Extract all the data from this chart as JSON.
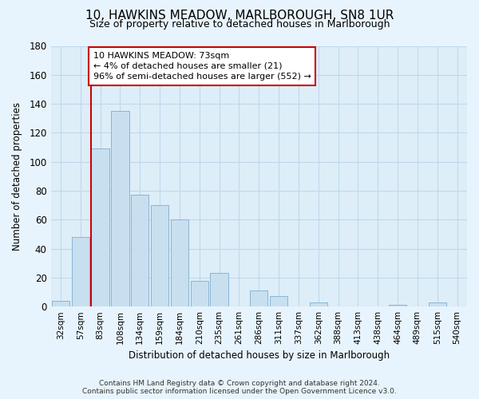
{
  "title": "10, HAWKINS MEADOW, MARLBOROUGH, SN8 1UR",
  "subtitle": "Size of property relative to detached houses in Marlborough",
  "xlabel": "Distribution of detached houses by size in Marlborough",
  "ylabel": "Number of detached properties",
  "footer_line1": "Contains HM Land Registry data © Crown copyright and database right 2024.",
  "footer_line2": "Contains public sector information licensed under the Open Government Licence v3.0.",
  "bar_labels": [
    "32sqm",
    "57sqm",
    "83sqm",
    "108sqm",
    "134sqm",
    "159sqm",
    "184sqm",
    "210sqm",
    "235sqm",
    "261sqm",
    "286sqm",
    "311sqm",
    "337sqm",
    "362sqm",
    "388sqm",
    "413sqm",
    "438sqm",
    "464sqm",
    "489sqm",
    "515sqm",
    "540sqm"
  ],
  "bar_values": [
    4,
    48,
    109,
    135,
    77,
    70,
    60,
    18,
    23,
    0,
    11,
    7,
    0,
    3,
    0,
    0,
    0,
    1,
    0,
    3,
    0
  ],
  "bar_color": "#c8dff0",
  "bar_edge_color": "#8ab4d4",
  "property_line_index": 2,
  "property_line_color": "#cc0000",
  "annotation_text_line1": "10 HAWKINS MEADOW: 73sqm",
  "annotation_text_line2": "← 4% of detached houses are smaller (21)",
  "annotation_text_line3": "96% of semi-detached houses are larger (552) →",
  "annotation_box_color": "#cc0000",
  "ylim": [
    0,
    180
  ],
  "yticks": [
    0,
    20,
    40,
    60,
    80,
    100,
    120,
    140,
    160,
    180
  ],
  "background_color": "#e8f4fd",
  "plot_bg_color": "#ddeef8",
  "grid_color": "#c0d8ec",
  "title_fontsize": 11,
  "subtitle_fontsize": 9
}
